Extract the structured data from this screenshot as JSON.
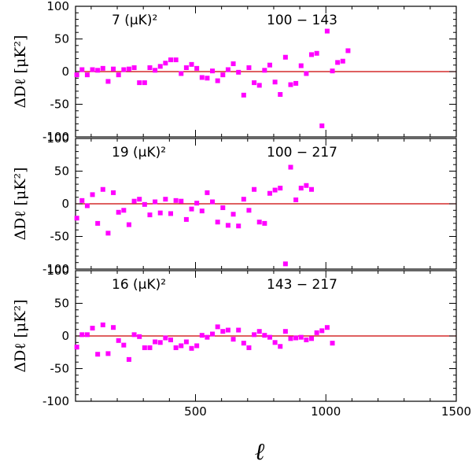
{
  "chart_data": {
    "type": "scatter",
    "xlabel": "ℓ",
    "ylabel": "ΔDℓ [μK²]",
    "xlim": [
      40,
      1500
    ],
    "ylim": [
      -100,
      100
    ],
    "x_ticks": [
      500,
      1000,
      1500
    ],
    "y_ticks": [
      -100,
      -50,
      0,
      50,
      100
    ],
    "marker_color": "#ff00ff",
    "zero_line_color": "#cc0000",
    "panels": [
      {
        "name": "100-143",
        "amplitude_label": "7 (μK)²",
        "pair_label": "100 − 143",
        "series": [
          {
            "name": "100x143",
            "x": [
              45,
              65,
              85,
              105,
              125,
              145,
              165,
              185,
              205,
              225,
              245,
              265,
              285,
              305,
              325,
              345,
              365,
              385,
              405,
              425,
              445,
              465,
              485,
              505,
              525,
              545,
              565,
              585,
              605,
              625,
              645,
              665,
              685,
              705,
              725,
              745,
              765,
              785,
              805,
              825,
              845,
              865,
              885,
              905,
              925,
              945,
              965,
              985,
              1005,
              1025,
              1045,
              1065,
              1085,
              1105,
              1125,
              1145,
              1165,
              1185,
              1205,
              1225,
              1245,
              1265,
              1285,
              1305,
              1325,
              1345,
              1365,
              1385,
              1405,
              1425,
              1445,
              1465,
              1485
            ],
            "y": [
              -5,
              3,
              -5,
              3,
              2,
              5,
              -15,
              4,
              -5,
              3,
              4,
              6,
              -17,
              -17,
              6,
              2,
              8,
              13,
              18,
              18,
              -3,
              6,
              11,
              5,
              -9,
              -10,
              1,
              -14,
              -5,
              3,
              12,
              -1,
              -36,
              6,
              -17,
              -21,
              2,
              10,
              -16,
              -35,
              22,
              -20,
              -18,
              9,
              -3,
              26,
              28,
              -83,
              62,
              1,
              14,
              16,
              32,
              null,
              null,
              null,
              null,
              null,
              null,
              null,
              null,
              null,
              null,
              null,
              null,
              null,
              null,
              null,
              null,
              null,
              null,
              null,
              null
            ]
          }
        ]
      },
      {
        "name": "100-217",
        "amplitude_label": "19 (μK)²",
        "pair_label": "100 − 217",
        "series": [
          {
            "name": "100x217",
            "x": [
              45,
              65,
              85,
              105,
              125,
              145,
              165,
              185,
              205,
              225,
              245,
              265,
              285,
              305,
              325,
              345,
              365,
              385,
              405,
              425,
              445,
              465,
              485,
              505,
              525,
              545,
              565,
              585,
              605,
              625,
              645,
              665,
              685,
              705,
              725,
              745,
              765,
              785,
              805,
              825,
              845,
              865,
              885,
              905,
              925,
              945,
              965,
              985,
              1005,
              1025,
              1045,
              1065,
              1085,
              1105,
              1125,
              1145,
              1165,
              1185,
              1205,
              1225,
              1245,
              1265,
              1285,
              1305,
              1325,
              1345,
              1365,
              1385,
              1405,
              1425,
              1445,
              1465,
              1485
            ],
            "y": [
              -22,
              5,
              -3,
              14,
              -30,
              22,
              -45,
              17,
              -13,
              -10,
              -32,
              4,
              7,
              -1,
              -17,
              3,
              -14,
              7,
              -15,
              5,
              4,
              -24,
              -8,
              1,
              -11,
              17,
              3,
              -28,
              -6,
              -33,
              -16,
              -34,
              7,
              -10,
              22,
              -28,
              -30,
              16,
              21,
              24,
              -92,
              56,
              6,
              24,
              28,
              22,
              null,
              null,
              null,
              null,
              null,
              null,
              null,
              null,
              null,
              null,
              null,
              null,
              null,
              null,
              null,
              null,
              null,
              null,
              null,
              null,
              null,
              null,
              null,
              null,
              null,
              null,
              null
            ]
          }
        ]
      },
      {
        "name": "143-217",
        "amplitude_label": "16 (μK)²",
        "pair_label": "143 − 217",
        "series": [
          {
            "name": "143x217",
            "x": [
              45,
              65,
              85,
              105,
              125,
              145,
              165,
              185,
              205,
              225,
              245,
              265,
              285,
              305,
              325,
              345,
              365,
              385,
              405,
              425,
              445,
              465,
              485,
              505,
              525,
              545,
              565,
              585,
              605,
              625,
              645,
              665,
              685,
              705,
              725,
              745,
              765,
              785,
              805,
              825,
              845,
              865,
              885,
              905,
              925,
              945,
              965,
              985,
              1005,
              1025,
              1045,
              1065,
              1085,
              1105,
              1125,
              1145,
              1165,
              1185,
              1205,
              1225,
              1245,
              1265,
              1285,
              1305,
              1325,
              1345,
              1365,
              1385,
              1405,
              1425,
              1445,
              1465,
              1485
            ],
            "y": [
              -17,
              2,
              2,
              12,
              -28,
              17,
              -27,
              13,
              -7,
              -14,
              -36,
              2,
              -1,
              -18,
              -18,
              -9,
              -10,
              -3,
              -6,
              -18,
              -15,
              -9,
              -19,
              -15,
              1,
              -2,
              3,
              14,
              7,
              9,
              -5,
              9,
              -11,
              -18,
              2,
              7,
              1,
              -2,
              -10,
              -16,
              7,
              -4,
              -3,
              -2,
              -6,
              -4,
              5,
              8,
              13,
              -11,
              null,
              null,
              null,
              null,
              null,
              null,
              null,
              null,
              null,
              null,
              null,
              null,
              null,
              null,
              null,
              null,
              null,
              null,
              null,
              null,
              null,
              null,
              null
            ]
          }
        ]
      }
    ]
  }
}
